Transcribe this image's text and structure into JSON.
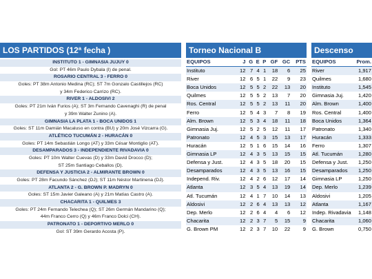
{
  "matches_panel": {
    "title": "LOS PARTIDOS (12ª fecha )",
    "matches": [
      {
        "result": "INSTITUTO 1 - GIMNASIA JUJUY 0",
        "goals": [
          "Gol: PT 46m Paulo Dybala (I) de penal."
        ]
      },
      {
        "result": "ROSARIO CENTRAL 3 - FERRO 0",
        "goals": [
          "Goles: PT 38m Antonio Medina (RC); ST 7m Gonzalo Castillejos (RC)",
          "y 34m Federico Carrizo (RC)."
        ]
      },
      {
        "result": "RIVER 1 - ALDOSIVI 2",
        "goals": [
          "Goles: PT 21m Iván Furios (A); ST 3m Fernando Cavenaghi (R) de penal",
          "y 39m Walter Zunino (A)."
        ]
      },
      {
        "result": "GIMNASIA LA PLATA 1 - BOCA UNIDOS 1",
        "goals": [
          "Goles: ST 11m Damián Macaluso en contra (BU) y 20m José Vizcarra (G)."
        ]
      },
      {
        "result": "ATLÉTICO TUCUMÁN 2 - HURACÁN 0",
        "goals": [
          "Goles: PT 14m Sebastián Longo (AT) y 33m César Montiglio (AT)."
        ]
      },
      {
        "result": "DESAMPARADOS 3 - INDEPENDIENTE RIVADAVIA 0",
        "goals": [
          "Goles: PT 10m Walter Cuevas (D) y 33m David Drocco (D);",
          "ST 25m Santiago Ceballos (D)."
        ]
      },
      {
        "result": "DEFENSA Y JUSTICIA 2 - ALMIRANTE BROWN 0",
        "goals": [
          "Goles: PT 28m Facundo Sánchez (DJ); ST 11m Néstor Martinena (DJ)."
        ]
      },
      {
        "result": "ATLANTA 2 - G. BROWN P. MADRYN 0",
        "goals": [
          "Goles: ST 15m Javier Galeano (A) y 21m Matías Castro (A)."
        ]
      },
      {
        "result": "CHACARITA 1 - QUILMES 3",
        "goals": [
          "Goles: PT 24m Fernando Telechea (Q); ST 26m Germán Mandarino (Q);",
          "44m Franco Cerro (Q) y 46m Franco Dolci (CH)."
        ]
      },
      {
        "result": "PATRONATO 1 - DEPORTIVO MERLO 0",
        "goals": [
          "Gol: ST 39m Gerardo Acosta (P)."
        ]
      }
    ]
  },
  "standings": {
    "title": "Torneo Nacional B",
    "columns": [
      "EQUIPOS",
      "J",
      "G",
      "E",
      "P",
      "GF",
      "GC",
      "PTS"
    ],
    "rows": [
      [
        "Instituto",
        12,
        7,
        4,
        1,
        18,
        6,
        25
      ],
      [
        "River",
        12,
        6,
        5,
        1,
        22,
        9,
        23
      ],
      [
        "Boca Unidos",
        12,
        5,
        5,
        2,
        22,
        13,
        20
      ],
      [
        "Quilmes",
        12,
        5,
        5,
        2,
        13,
        7,
        20
      ],
      [
        "Ros. Central",
        12,
        5,
        5,
        2,
        13,
        11,
        20
      ],
      [
        "Ferro",
        12,
        5,
        4,
        3,
        7,
        8,
        19
      ],
      [
        "Alm. Brown",
        12,
        5,
        3,
        4,
        18,
        11,
        18
      ],
      [
        "Gimnasia Juj.",
        12,
        5,
        2,
        5,
        12,
        11,
        17
      ],
      [
        "Patronato",
        12,
        4,
        5,
        3,
        15,
        13,
        17
      ],
      [
        "Huracán",
        12,
        5,
        1,
        6,
        15,
        14,
        16
      ],
      [
        "Gimnasia LP",
        12,
        4,
        3,
        5,
        13,
        15,
        15
      ],
      [
        "Defensa y Just.",
        12,
        4,
        3,
        5,
        18,
        20,
        15
      ],
      [
        "Desamparados",
        12,
        4,
        3,
        5,
        13,
        16,
        15
      ],
      [
        "Independ. Riv.",
        12,
        4,
        2,
        6,
        12,
        17,
        14
      ],
      [
        "Atlanta",
        12,
        3,
        5,
        4,
        13,
        19,
        14
      ],
      [
        "Atl. Tucumán",
        12,
        4,
        1,
        7,
        10,
        14,
        13
      ],
      [
        "Aldosivi",
        12,
        2,
        6,
        4,
        13,
        13,
        12
      ],
      [
        "Dep. Merlo",
        12,
        2,
        6,
        4,
        4,
        6,
        12
      ],
      [
        "Chacarita",
        12,
        2,
        3,
        7,
        5,
        15,
        9
      ],
      [
        "G. Brown PM",
        12,
        2,
        3,
        7,
        10,
        22,
        9
      ]
    ]
  },
  "relegation": {
    "title": "Descenso",
    "columns": [
      "EQUIPOS",
      "Prom."
    ],
    "rows": [
      [
        "River",
        "1,917"
      ],
      [
        "Quilmes",
        "1,680"
      ],
      [
        "Instituto",
        "1,545"
      ],
      [
        "Gimnasia Juj.",
        "1,420"
      ],
      [
        "Alm. Brown",
        "1,400"
      ],
      [
        "Ros. Central",
        "1,400"
      ],
      [
        "Boca Unidos",
        "1,364"
      ],
      [
        "Patronato",
        "1,340"
      ],
      [
        "Huracán",
        "1,333"
      ],
      [
        "Ferro",
        "1,307"
      ],
      [
        "Atl. Tucumán",
        "1,280"
      ],
      [
        "Defensa y Just.",
        "1,250"
      ],
      [
        "Desamparados",
        "1,250"
      ],
      [
        "Gimnasia LP",
        "1,250"
      ],
      [
        "Dep. Merlo",
        "1,239"
      ],
      [
        "Aldosivi",
        "1,205"
      ],
      [
        "Atlanta",
        "1,167"
      ],
      [
        "Indep. Rivadavia",
        "1,148"
      ],
      [
        "Chacarita",
        "1,060"
      ],
      [
        "G. Brown",
        "0,750"
      ]
    ]
  }
}
